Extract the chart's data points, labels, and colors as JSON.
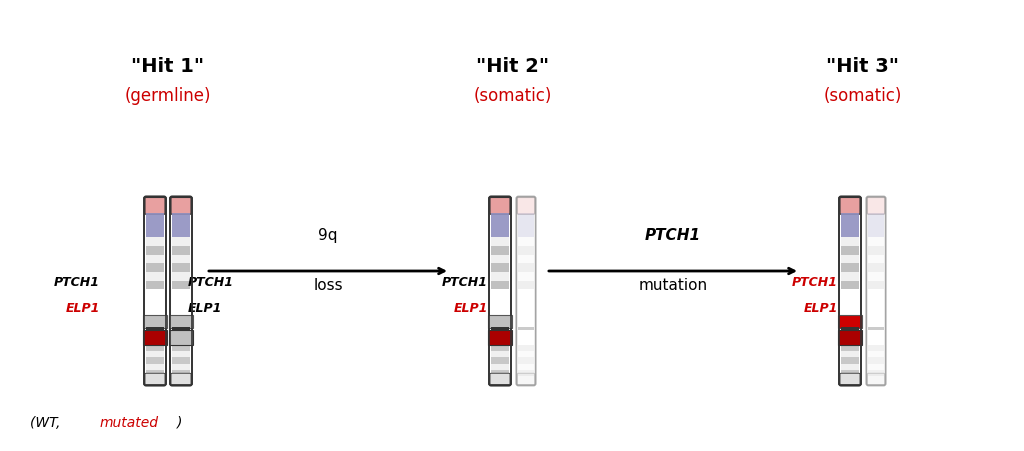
{
  "title1": "\"Hit 1\"",
  "title2": "\"Hit 2\"",
  "title3": "\"Hit 3\"",
  "subtitle1": "(germline)",
  "subtitle2": "(somatic)",
  "subtitle3": "(somatic)",
  "arrow1_label_top": "9q",
  "arrow1_label_bot": "loss",
  "arrow2_label_top": "PTCH1",
  "arrow2_label_bot": "mutation",
  "legend_text": "(WT, mutated)",
  "bg_color": "#ffffff",
  "chr_body_color": "#ffffff",
  "chr_outline": "#333333",
  "chr_stripe_colors": [
    "#cccccc",
    "#ffffff"
  ],
  "chr_top_color": "#e8a0a0",
  "chr_centromere_color": "#b0b0c8",
  "chr_blue_band": "#9090c0",
  "centromere_color": "#888888",
  "ptch1_box_color": "#c0c0c0",
  "elp1_box_color": "#aa0000",
  "elp1_box_color_red": "#cc0000",
  "red_color": "#cc0000",
  "black": "#000000",
  "faded": "#d8d8d8"
}
